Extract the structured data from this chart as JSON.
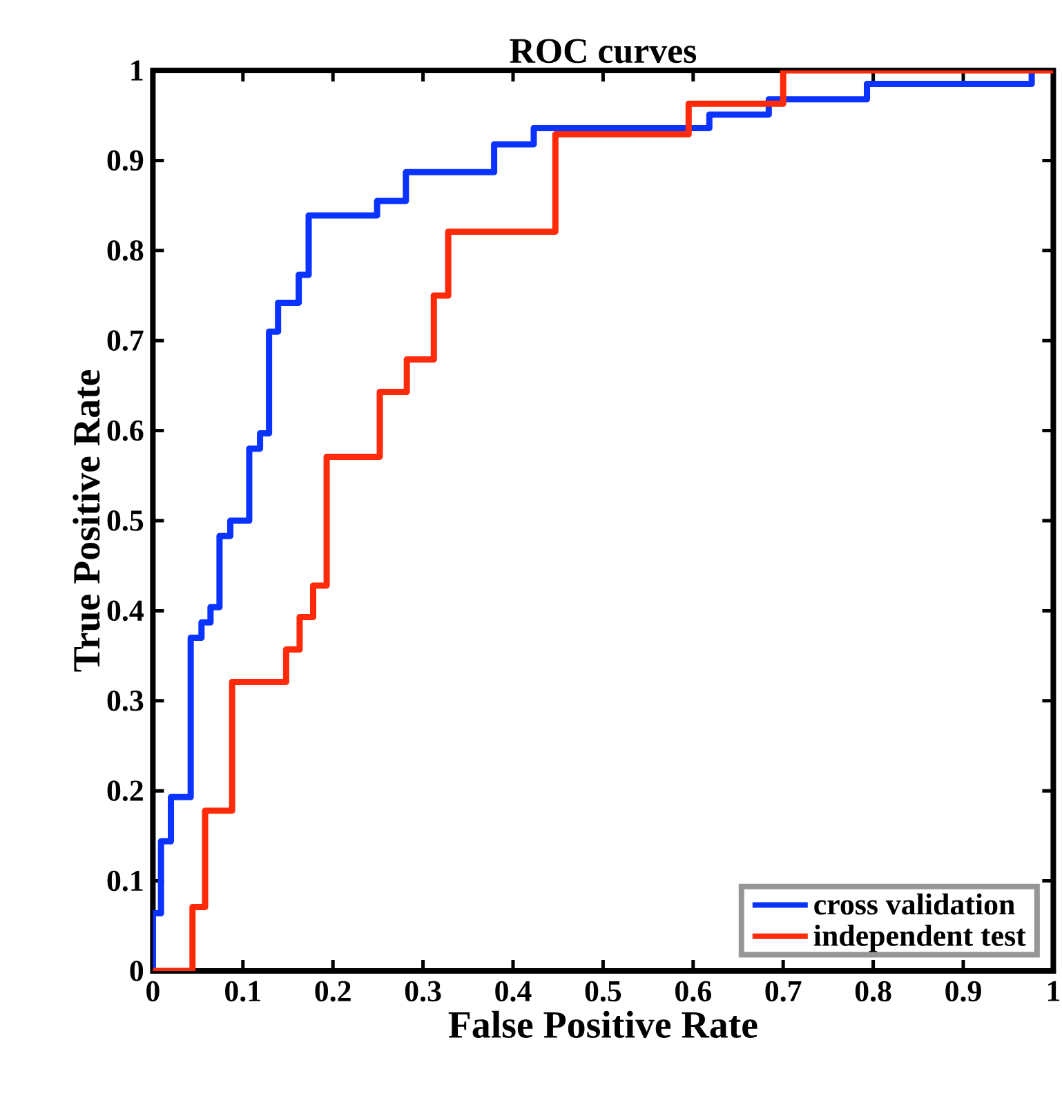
{
  "chart_data": {
    "type": "step",
    "title": "ROC curves",
    "xlabel": "False Positive Rate",
    "ylabel": "True Positive Rate",
    "xlim": [
      0,
      1
    ],
    "ylim": [
      0,
      1
    ],
    "xticks": [
      0,
      0.1,
      0.2,
      0.3,
      0.4,
      0.5,
      0.6,
      0.7,
      0.8,
      0.9,
      1
    ],
    "yticks": [
      0,
      0.1,
      0.2,
      0.3,
      0.4,
      0.5,
      0.6,
      0.7,
      0.8,
      0.9,
      1
    ],
    "legend": "bottom right",
    "series": [
      {
        "name": "cross validation",
        "color": "#0a33ff",
        "x": [
          0,
          0,
          0.009,
          0.02,
          0.042,
          0.054,
          0.064,
          0.074,
          0.086,
          0.107,
          0.119,
          0.129,
          0.139,
          0.162,
          0.173,
          0.249,
          0.281,
          0.379,
          0.423,
          0.618,
          0.684,
          0.793,
          0.976
        ],
        "values": [
          0,
          0.064,
          0.144,
          0.193,
          0.37,
          0.387,
          0.404,
          0.483,
          0.5,
          0.58,
          0.597,
          0.71,
          0.742,
          0.773,
          0.839,
          0.855,
          0.887,
          0.918,
          0.936,
          0.951,
          0.968,
          0.985,
          1
        ]
      },
      {
        "name": "independent test",
        "color": "#ff2a0a",
        "x": [
          0,
          0.044,
          0.058,
          0.088,
          0.148,
          0.163,
          0.178,
          0.193,
          0.252,
          0.282,
          0.312,
          0.328,
          0.447,
          0.595,
          0.7,
          1
        ],
        "values": [
          0,
          0.071,
          0.178,
          0.321,
          0.357,
          0.393,
          0.428,
          0.571,
          0.643,
          0.679,
          0.75,
          0.821,
          0.929,
          0.963,
          1,
          1
        ]
      }
    ]
  }
}
